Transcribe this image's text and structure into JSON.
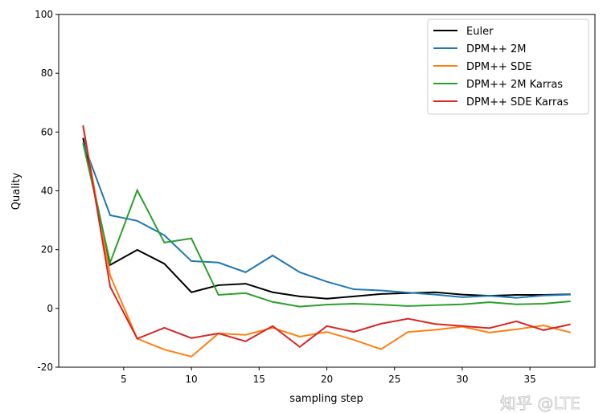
{
  "chart_data": {
    "type": "line",
    "title": "",
    "xlabel": "sampling step",
    "ylabel": "Quality",
    "xlim": [
      0.2,
      39.8
    ],
    "ylim": [
      -20,
      100
    ],
    "xticks": [
      5,
      10,
      15,
      20,
      25,
      30,
      35
    ],
    "yticks": [
      -20,
      0,
      20,
      40,
      60,
      80,
      100
    ],
    "grid": false,
    "legend_position": "top-right",
    "x": [
      2,
      4,
      6,
      8,
      10,
      12,
      14,
      16,
      18,
      20,
      22,
      24,
      26,
      28,
      30,
      32,
      34,
      36,
      38
    ],
    "series": [
      {
        "name": "Euler",
        "color": "#000000",
        "values": [
          58,
          14.8,
          19.9,
          15.2,
          5.5,
          7.9,
          8.4,
          5.5,
          4.1,
          3.3,
          4.1,
          4.9,
          5.2,
          5.5,
          4.7,
          4.3,
          4.6,
          4.6,
          4.8
        ]
      },
      {
        "name": "DPM++ 2M",
        "color": "#1f77b4",
        "values": [
          56.5,
          31.7,
          29.8,
          24.9,
          16.1,
          15.6,
          12.3,
          18,
          12.3,
          9.1,
          6.5,
          6.1,
          5.4,
          4.7,
          3.8,
          4.3,
          3.6,
          4.4,
          4.7
        ]
      },
      {
        "name": "DPM++ SDE",
        "color": "#ff7f0e",
        "values": [
          62,
          11.2,
          -10.3,
          -14,
          -16.4,
          -8.5,
          -9.0,
          -6.6,
          -9.6,
          -8.0,
          -10.7,
          -13.9,
          -8.0,
          -7.3,
          -6.2,
          -8.2,
          -7.1,
          -5.8,
          -8.2
        ]
      },
      {
        "name": "DPM++ 2M Karras",
        "color": "#2ca02c",
        "values": [
          56.2,
          15.6,
          40.2,
          22.4,
          23.8,
          4.6,
          5.2,
          2.2,
          0.6,
          1.3,
          1.6,
          1.3,
          0.8,
          1.1,
          1.4,
          2.1,
          1.4,
          1.6,
          2.4
        ]
      },
      {
        "name": "DPM++ SDE Karras",
        "color": "#d62728",
        "values": [
          62.3,
          7.4,
          -10.3,
          -6.6,
          -10.1,
          -8.5,
          -11.2,
          -6.0,
          -13.1,
          -6.0,
          -8.0,
          -5.2,
          -3.5,
          -5.3,
          -6.0,
          -6.7,
          -4.4,
          -7.4,
          -5.4
        ]
      }
    ]
  },
  "watermark": "知乎 @LTE"
}
